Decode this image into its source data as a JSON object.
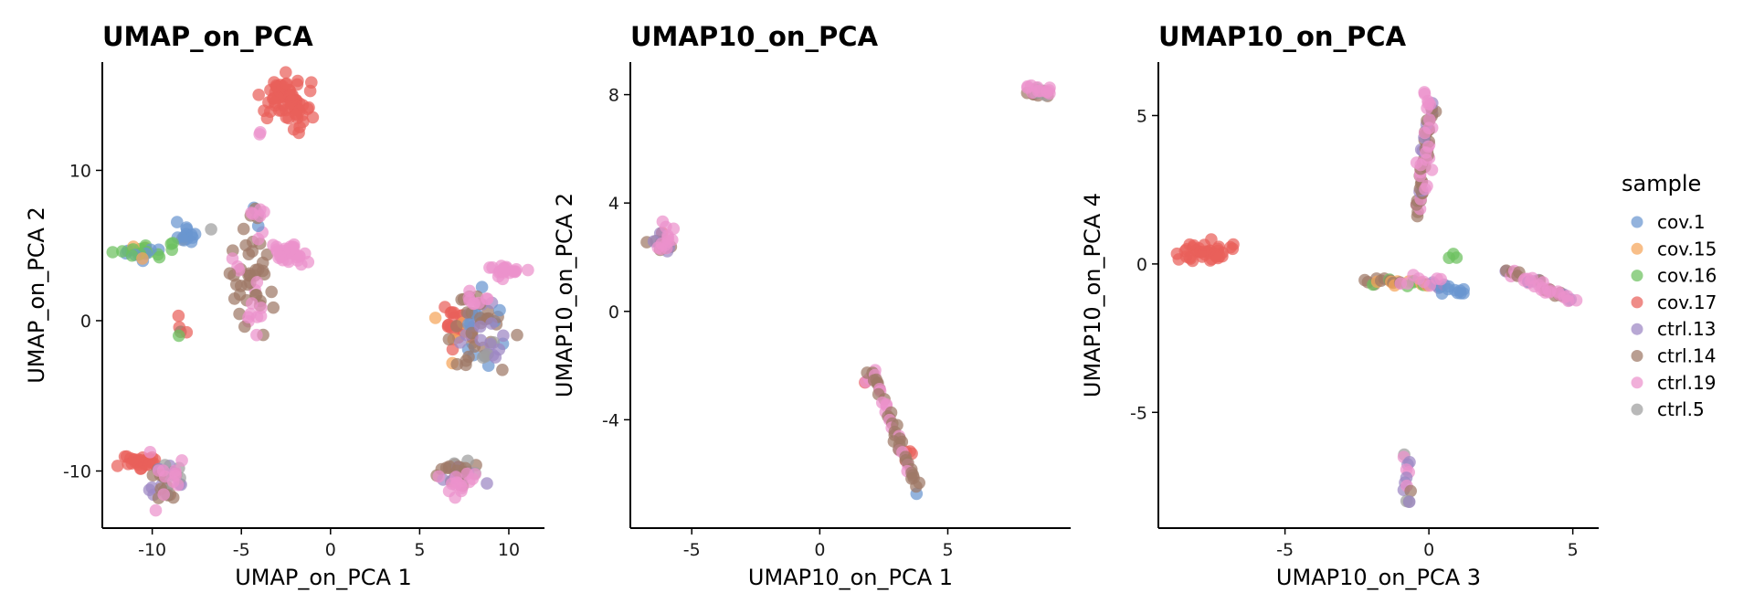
{
  "chart_data": [
    {
      "type": "scatter",
      "title": "UMAP_on_PCA",
      "xlabel": "UMAP_on_PCA 1",
      "ylabel": "UMAP_on_PCA 2",
      "xlim": [
        -12.8,
        12
      ],
      "ylim": [
        -13.8,
        17.2
      ],
      "xticks": [
        -10,
        -5,
        0,
        5,
        10
      ],
      "yticks": [
        -10,
        0,
        10
      ],
      "clusters": [
        {
          "x": -2.5,
          "y": 14.5,
          "sx": 0.7,
          "sy": 0.8,
          "n": 70,
          "mix": [
            "cov.17"
          ]
        },
        {
          "x": -3.9,
          "y": 12.5,
          "sx": 0.1,
          "sy": 0.1,
          "n": 2,
          "mix": [
            "ctrl.19"
          ]
        },
        {
          "x": -10.7,
          "y": 4.5,
          "sx": 0.7,
          "sy": 0.25,
          "n": 25,
          "mix": [
            "cov.16",
            "cov.16",
            "cov.15",
            "cov.1"
          ]
        },
        {
          "x": -8.0,
          "y": 5.7,
          "sx": 0.4,
          "sy": 0.4,
          "n": 16,
          "mix": [
            "cov.1",
            "cov.1",
            "ctrl.5"
          ]
        },
        {
          "x": -8.7,
          "y": 5.0,
          "sx": 0.2,
          "sy": 0.2,
          "n": 3,
          "mix": [
            "cov.16"
          ]
        },
        {
          "x": -4.6,
          "y": 3.0,
          "sx": 0.6,
          "sy": 2.2,
          "n": 45,
          "mix": [
            "ctrl.14",
            "ctrl.14",
            "ctrl.14",
            "ctrl.19"
          ]
        },
        {
          "x": -4.3,
          "y": 6.8,
          "sx": 0.2,
          "sy": 0.4,
          "n": 6,
          "mix": [
            "ctrl.14",
            "cov.1"
          ]
        },
        {
          "x": -4.0,
          "y": 7.1,
          "sx": 0.3,
          "sy": 0.2,
          "n": 5,
          "mix": [
            "ctrl.19"
          ]
        },
        {
          "x": -4.3,
          "y": 0.2,
          "sx": 0.3,
          "sy": 0.6,
          "n": 6,
          "mix": [
            "ctrl.19"
          ]
        },
        {
          "x": -2.3,
          "y": 4.5,
          "sx": 0.5,
          "sy": 0.35,
          "n": 30,
          "mix": [
            "ctrl.19"
          ]
        },
        {
          "x": -8.4,
          "y": -0.3,
          "sx": 0.2,
          "sy": 0.3,
          "n": 4,
          "mix": [
            "cov.17",
            "ctrl.14"
          ]
        },
        {
          "x": -8.5,
          "y": -1.0,
          "sx": 0.05,
          "sy": 0.05,
          "n": 1,
          "mix": [
            "cov.16"
          ]
        },
        {
          "x": 9.8,
          "y": 3.3,
          "sx": 0.5,
          "sy": 0.2,
          "n": 20,
          "mix": [
            "ctrl.19"
          ]
        },
        {
          "x": 7.1,
          "y": -0.5,
          "sx": 0.5,
          "sy": 0.9,
          "n": 25,
          "mix": [
            "cov.17",
            "cov.17",
            "cov.15"
          ]
        },
        {
          "x": 8.4,
          "y": -0.2,
          "sx": 0.8,
          "sy": 1.3,
          "n": 50,
          "mix": [
            "ctrl.14",
            "ctrl.14",
            "ctrl.13",
            "cov.1"
          ]
        },
        {
          "x": 9.1,
          "y": -1.9,
          "sx": 0.4,
          "sy": 0.4,
          "n": 10,
          "mix": [
            "ctrl.5",
            "ctrl.13"
          ]
        },
        {
          "x": 8.2,
          "y": 1.4,
          "sx": 0.5,
          "sy": 0.3,
          "n": 8,
          "mix": [
            "ctrl.19"
          ]
        },
        {
          "x": -10.8,
          "y": -9.5,
          "sx": 0.5,
          "sy": 0.25,
          "n": 30,
          "mix": [
            "cov.17"
          ]
        },
        {
          "x": -9.3,
          "y": -10.7,
          "sx": 0.5,
          "sy": 0.8,
          "n": 30,
          "mix": [
            "ctrl.14",
            "ctrl.14",
            "ctrl.13",
            "ctrl.5"
          ]
        },
        {
          "x": -9.2,
          "y": -10.0,
          "sx": 0.5,
          "sy": 0.7,
          "n": 12,
          "mix": [
            "ctrl.19"
          ]
        },
        {
          "x": 7.3,
          "y": -10.2,
          "sx": 0.5,
          "sy": 0.7,
          "n": 30,
          "mix": [
            "ctrl.14",
            "ctrl.14",
            "ctrl.13",
            "ctrl.5"
          ]
        },
        {
          "x": 7.1,
          "y": -10.7,
          "sx": 0.5,
          "sy": 0.5,
          "n": 15,
          "mix": [
            "ctrl.19"
          ]
        }
      ]
    },
    {
      "type": "scatter",
      "title": "UMAP10_on_PCA",
      "xlabel": "UMAP10_on_PCA 1",
      "ylabel": "UMAP10_on_PCA 2",
      "xlim": [
        -7.4,
        9.8
      ],
      "ylim": [
        -8.0,
        9.2
      ],
      "xticks": [
        -5,
        0,
        5
      ],
      "yticks": [
        -4,
        0,
        4,
        8
      ],
      "clusters": [
        {
          "x": -6.1,
          "y": 2.5,
          "sx": 0.2,
          "sy": 0.3,
          "n": 15,
          "mix": [
            "ctrl.14",
            "ctrl.13",
            "cov.17"
          ]
        },
        {
          "x": -6.0,
          "y": 2.7,
          "sx": 0.2,
          "sy": 0.3,
          "n": 12,
          "mix": [
            "ctrl.19"
          ]
        },
        {
          "x": 8.4,
          "y": 8.1,
          "sx": 0.3,
          "sy": 0.1,
          "n": 15,
          "mix": [
            "ctrl.14",
            "ctrl.5"
          ]
        },
        {
          "x": 8.5,
          "y": 8.2,
          "sx": 0.3,
          "sy": 0.08,
          "n": 12,
          "mix": [
            "ctrl.19"
          ]
        },
        {
          "x": 2.0,
          "y": -2.6,
          "sx": 0.15,
          "sy": 0.2,
          "n": 4,
          "mix": [
            "cov.17",
            "ctrl.19"
          ]
        },
        {
          "x": 3.6,
          "y": -5.3,
          "sx": 0.15,
          "sy": 0.15,
          "n": 4,
          "mix": [
            "cov.17"
          ]
        },
        {
          "x": 3.7,
          "y": -6.7,
          "sx": 0.05,
          "sy": 0.05,
          "n": 1,
          "mix": [
            "cov.1"
          ]
        }
      ],
      "segments": [
        {
          "x1": 2.0,
          "y1": -2.2,
          "x2": 3.8,
          "y2": -6.4,
          "n": 45,
          "mix": [
            "ctrl.14",
            "ctrl.14",
            "ctrl.14",
            "ctrl.19"
          ]
        }
      ]
    },
    {
      "type": "scatter",
      "title": "UMAP10_on_PCA",
      "xlabel": "UMAP10_on_PCA 3",
      "ylabel": "UMAP10_on_PCA 4",
      "xlim": [
        -9.4,
        5.9
      ],
      "ylim": [
        -8.9,
        6.8
      ],
      "xticks": [
        -5,
        0,
        5
      ],
      "yticks": [
        -5,
        0,
        5
      ],
      "clusters": [
        {
          "x": -7.7,
          "y": 0.4,
          "sx": 0.4,
          "sy": 0.15,
          "n": 40,
          "mix": [
            "cov.17"
          ]
        },
        {
          "x": 0.8,
          "y": 0.3,
          "sx": 0.1,
          "sy": 0.15,
          "n": 3,
          "mix": [
            "cov.16"
          ]
        }
      ],
      "segments": [
        {
          "x1": -0.4,
          "y1": 1.7,
          "x2": 0.1,
          "y2": 5.5,
          "n": 50,
          "mix": [
            "ctrl.14",
            "ctrl.14",
            "ctrl.14",
            "ctrl.13",
            "ctrl.19"
          ]
        },
        {
          "x1": -0.1,
          "y1": 2.5,
          "x2": -0.1,
          "y2": 5.9,
          "n": 14,
          "mix": [
            "ctrl.19"
          ]
        },
        {
          "x1": -2.2,
          "y1": -0.6,
          "x2": 0.0,
          "y2": -0.7,
          "n": 25,
          "mix": [
            "cov.16",
            "cov.15",
            "ctrl.14"
          ]
        },
        {
          "x1": 0.0,
          "y1": -0.7,
          "x2": 1.3,
          "y2": -1.0,
          "n": 15,
          "mix": [
            "cov.1",
            "ctrl.13",
            "cov.1"
          ]
        },
        {
          "x1": -1.0,
          "y1": -0.6,
          "x2": 0.5,
          "y2": -0.6,
          "n": 8,
          "mix": [
            "ctrl.19"
          ]
        },
        {
          "x1": 2.7,
          "y1": -0.2,
          "x2": 4.9,
          "y2": -1.2,
          "n": 30,
          "mix": [
            "ctrl.14",
            "ctrl.14",
            "ctrl.13",
            "ctrl.19"
          ]
        },
        {
          "x1": 3.3,
          "y1": -0.6,
          "x2": 5.1,
          "y2": -1.2,
          "n": 15,
          "mix": [
            "ctrl.19"
          ]
        },
        {
          "x1": -0.8,
          "y1": -6.4,
          "x2": -0.8,
          "y2": -8.1,
          "n": 14,
          "mix": [
            "ctrl.13",
            "ctrl.5",
            "ctrl.14",
            "ctrl.19"
          ]
        }
      ]
    }
  ],
  "legend": {
    "title": "sample",
    "placement": "right",
    "items": [
      {
        "label": "cov.1",
        "color": "#6A95D0"
      },
      {
        "label": "cov.15",
        "color": "#F5A55A"
      },
      {
        "label": "cov.16",
        "color": "#6CC05E"
      },
      {
        "label": "cov.17",
        "color": "#E9605A"
      },
      {
        "label": "ctrl.13",
        "color": "#9D87C4"
      },
      {
        "label": "ctrl.14",
        "color": "#9E7866"
      },
      {
        "label": "ctrl.19",
        "color": "#EB92CC"
      },
      {
        "label": "ctrl.5",
        "color": "#9E9E9E"
      }
    ]
  }
}
